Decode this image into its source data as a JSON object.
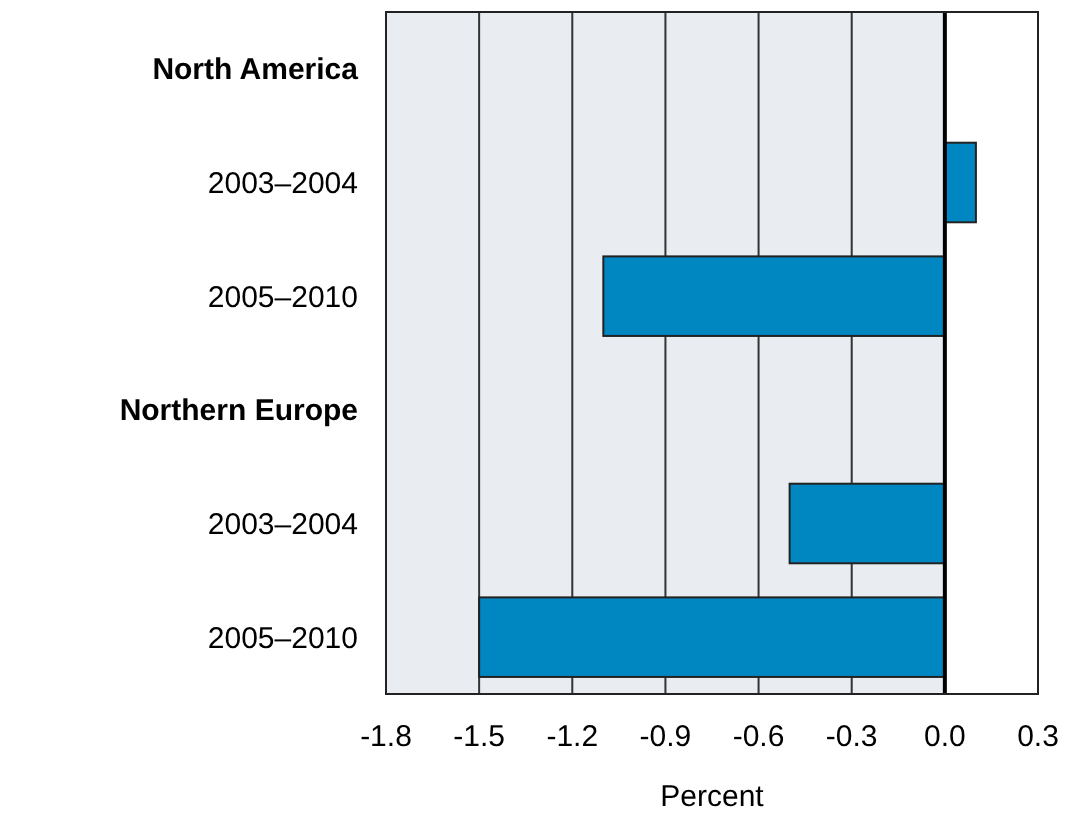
{
  "chart_data": {
    "type": "bar",
    "orientation": "horizontal",
    "xlabel": "Percent",
    "categories": [
      "North America",
      "2003–2004",
      "2005–2010",
      "Northern Europe",
      "2003–2004",
      "2005–2010"
    ],
    "values": [
      null,
      0.1,
      -1.1,
      null,
      -0.5,
      -1.5
    ],
    "color": "#0087c1",
    "xlim": [
      -1.8,
      0.3
    ],
    "xticks": [
      -1.8,
      -1.5,
      -1.2,
      -0.9,
      -0.6,
      -0.3,
      {
        "value": 0,
        "label": "0.0"
      },
      0.3
    ],
    "grid": "x",
    "bands": [
      {
        "axis": "x",
        "from": -1.8,
        "to": 0,
        "color": "#e9edf1"
      }
    ]
  }
}
